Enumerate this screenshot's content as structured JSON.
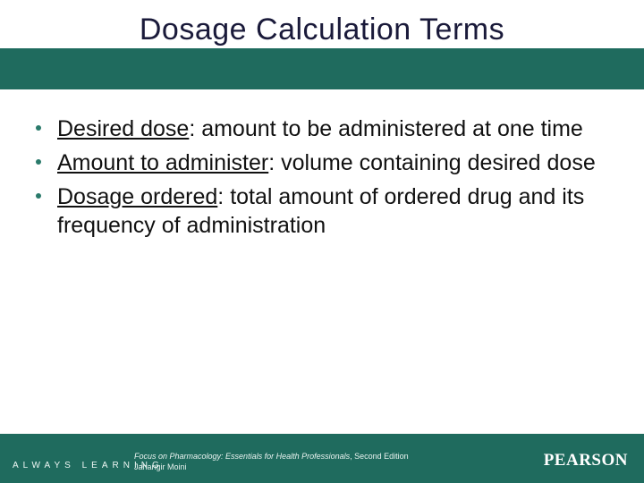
{
  "colors": {
    "brand_band": "#1f6b5e",
    "title_text": "#1a1a3a",
    "body_text": "#111111",
    "bullet_dot": "#2a7a6b",
    "footer_text": "#eef7f4",
    "background": "#ffffff"
  },
  "title": "Dosage Calculation Terms",
  "bullets": [
    {
      "term": "Desired dose",
      "def": ": amount to be administered at one time"
    },
    {
      "term": "Amount to administer",
      "def": ": volume containing desired dose"
    },
    {
      "term": "Dosage ordered",
      "def": ": total amount of ordered drug and its frequency of administration"
    }
  ],
  "footer": {
    "tagline": "ALWAYS LEARNING",
    "book": "Focus on Pharmacology: Essentials for Health Professionals",
    "edition": ", Second Edition",
    "author": "Jahangir Moini",
    "publisher": "PEARSON"
  }
}
